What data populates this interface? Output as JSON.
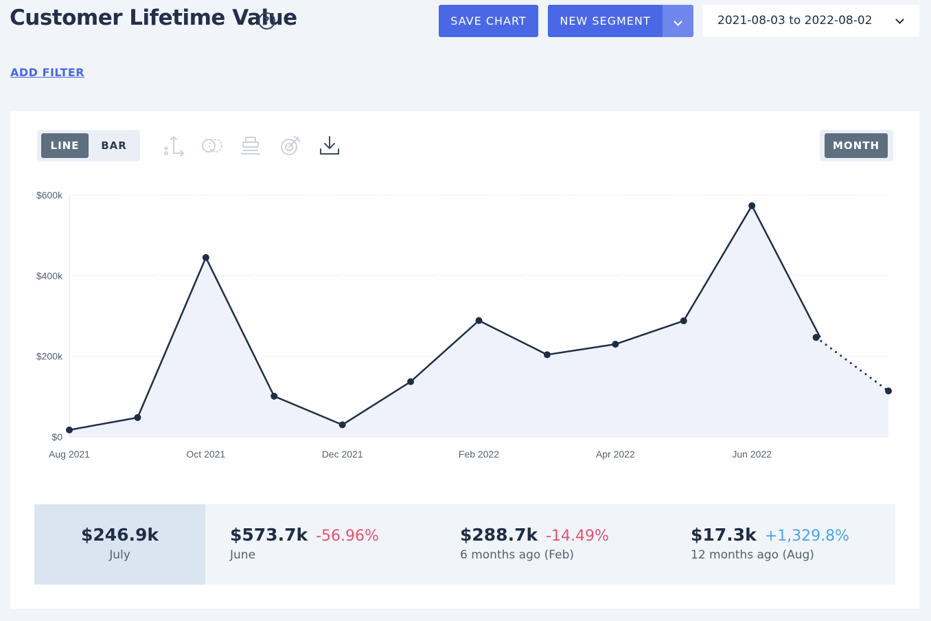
{
  "header": {
    "title": "Customer Lifetime Value",
    "help_icon": "?",
    "save_chart": "SAVE CHART",
    "new_segment": "NEW SEGMENT",
    "date_range": "2021-08-03 to 2022-08-02"
  },
  "filter": {
    "add_filter": "ADD FILTER"
  },
  "toolbar": {
    "line": "LINE",
    "bar": "BAR",
    "granularity": "MONTH",
    "icons": [
      "axis-icon",
      "compare-icon",
      "stack-icon",
      "goal-icon",
      "download-icon"
    ]
  },
  "colors": {
    "accent": "#4a68e6",
    "line": "#1f2d45",
    "area": "#eff2fb",
    "negative": "#e8516f",
    "positive": "#4aa7ea"
  },
  "chart_data": {
    "type": "line",
    "x": [
      "2021-08",
      "2021-09",
      "2021-10",
      "2021-11",
      "2021-12",
      "2022-01",
      "2022-02",
      "2022-03",
      "2022-04",
      "2022-05",
      "2022-06",
      "2022-07",
      "2022-08"
    ],
    "values": [
      17300,
      48000,
      445000,
      101000,
      30000,
      137000,
      288700,
      204000,
      230000,
      288000,
      573700,
      246900,
      114000
    ],
    "last_segment_style": "dotted",
    "x_tick_labels": [
      {
        "x": "2021-08",
        "label": "Aug 2021"
      },
      {
        "x": "2021-10",
        "label": "Oct 2021"
      },
      {
        "x": "2021-12",
        "label": "Dec 2021"
      },
      {
        "x": "2022-02",
        "label": "Feb 2022"
      },
      {
        "x": "2022-04",
        "label": "Apr 2022"
      },
      {
        "x": "2022-06",
        "label": "Jun 2022"
      }
    ],
    "y_ticks": [
      0,
      200000,
      400000,
      600000
    ],
    "y_tick_labels": [
      "$0",
      "$200k",
      "$400k",
      "$600k"
    ],
    "ylim": [
      0,
      600000
    ],
    "grid": true,
    "legend": "none"
  },
  "stats": {
    "current": {
      "value": "$246.9k",
      "label": "July"
    },
    "items": [
      {
        "value": "$573.7k",
        "change": "-56.96%",
        "label": "June",
        "trend": "negative"
      },
      {
        "value": "$288.7k",
        "change": "-14.49%",
        "label": "6 months ago (Feb)",
        "trend": "negative"
      },
      {
        "value": "$17.3k",
        "change": "+1,329.8%",
        "label": "12 months ago (Aug)",
        "trend": "positive"
      }
    ]
  }
}
